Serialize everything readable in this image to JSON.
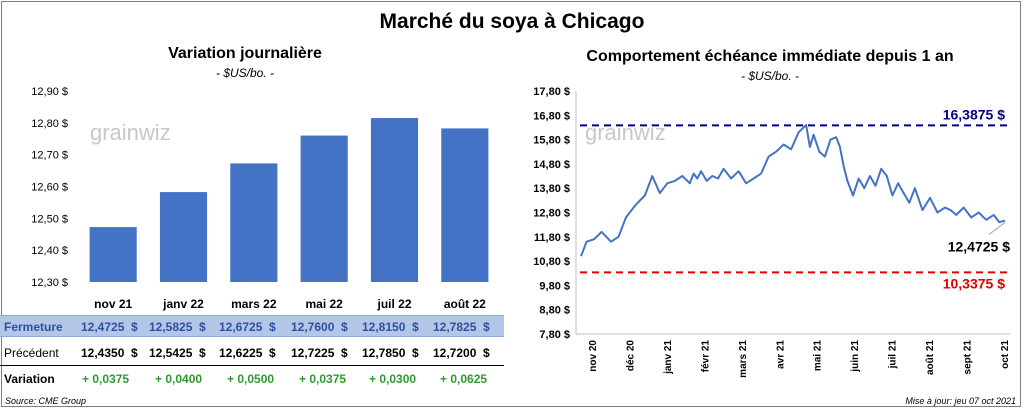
{
  "header": {
    "title": "Marché du soya à Chicago"
  },
  "left_chart": {
    "title": "Variation  journalière",
    "subtitle": "- $US/bo. -",
    "watermark": "grainwiz"
  },
  "right_chart": {
    "title": "Comportement  échéance immédiate depuis 1 an",
    "subtitle": "- $US/bo. -",
    "watermark": "grainwiz",
    "high_label": "16,3875 $",
    "low_label": "10,3375 $",
    "last_label": "12,4725 $"
  },
  "table": {
    "rows": [
      {
        "label": "Fermeture",
        "cells": [
          "12,4725  $",
          "12,5825  $",
          "12,6725  $",
          "12,7600  $",
          "12,8150  $",
          "12,7825  $"
        ]
      },
      {
        "label": "Précédent",
        "cells": [
          "12,4350  $",
          "12,5425  $",
          "12,6225  $",
          "12,7225  $",
          "12,7850  $",
          "12,7200  $"
        ]
      },
      {
        "label": "Variation",
        "cells": [
          "+ 0,0375",
          "+ 0,0400",
          "+ 0,0500",
          "+ 0,0375",
          "+ 0,0300",
          "+ 0,0625"
        ]
      }
    ]
  },
  "footer": {
    "source": "Source: CME Group",
    "updated": "Mise à jour: jeu 07 oct 2021"
  },
  "colors": {
    "bar": "#4472c4",
    "line": "#4472c4",
    "high": "#00008b",
    "low": "#e00000",
    "variation": "#2e9a2e"
  },
  "chart_data": [
    {
      "type": "bar",
      "categories": [
        "nov 21",
        "janv 22",
        "mars 22",
        "mai 22",
        "juil 22",
        "août 22"
      ],
      "values": [
        12.4725,
        12.5825,
        12.6725,
        12.76,
        12.815,
        12.7825
      ],
      "yticks": [
        "12,30 $",
        "12,40 $",
        "12,50 $",
        "12,60 $",
        "12,70 $",
        "12,80 $",
        "12,90 $"
      ],
      "ylim": [
        12.3,
        12.9
      ],
      "grid": false
    },
    {
      "type": "line",
      "ylim": [
        7.8,
        17.8
      ],
      "yticks": [
        "7,80 $",
        "8,80 $",
        "9,80 $",
        "10,80 $",
        "11,80 $",
        "12,80 $",
        "13,80 $",
        "14,80 $",
        "15,80 $",
        "16,80 $",
        "17,80 $"
      ],
      "xticks": [
        "nov 20",
        "déc 20",
        "janv 21",
        "févr 21",
        "mars 21",
        "avr 21",
        "mai 21",
        "juin 21",
        "juil 21",
        "août 21",
        "sept 21",
        "oct 21"
      ],
      "x": [
        0,
        0.15,
        0.35,
        0.55,
        0.8,
        1.0,
        1.2,
        1.45,
        1.7,
        1.9,
        2.1,
        2.3,
        2.5,
        2.7,
        2.9,
        3.0,
        3.1,
        3.2,
        3.35,
        3.5,
        3.65,
        3.8,
        4.0,
        4.2,
        4.4,
        4.6,
        4.8,
        5.0,
        5.2,
        5.4,
        5.6,
        5.8,
        6.0,
        6.1,
        6.2,
        6.35,
        6.5,
        6.65,
        6.8,
        6.9,
        7.0,
        7.1,
        7.25,
        7.4,
        7.55,
        7.7,
        7.85,
        8.0,
        8.15,
        8.3,
        8.45,
        8.6,
        8.75,
        8.9,
        9.1,
        9.3,
        9.5,
        9.7,
        9.85,
        10.0,
        10.2,
        10.4,
        10.6,
        10.8,
        11.0,
        11.15,
        11.3
      ],
      "y": [
        11.0,
        11.6,
        11.7,
        12.0,
        11.6,
        11.8,
        12.6,
        13.1,
        13.5,
        14.3,
        13.6,
        14.0,
        14.1,
        14.3,
        14.0,
        14.4,
        14.2,
        14.5,
        14.1,
        14.3,
        14.2,
        14.6,
        14.2,
        14.5,
        14.0,
        14.2,
        14.4,
        15.1,
        15.3,
        15.6,
        15.4,
        16.1,
        16.4,
        15.5,
        16.0,
        15.3,
        15.1,
        15.8,
        15.9,
        15.5,
        14.7,
        14.1,
        13.5,
        14.2,
        13.8,
        14.3,
        13.9,
        14.6,
        14.3,
        13.5,
        14.0,
        13.6,
        13.2,
        13.8,
        12.9,
        13.4,
        12.8,
        13.0,
        12.9,
        12.7,
        13.0,
        12.6,
        12.8,
        12.5,
        12.7,
        12.4,
        12.4725
      ],
      "hlines": [
        16.3875,
        10.3375
      ],
      "grid": false
    }
  ]
}
